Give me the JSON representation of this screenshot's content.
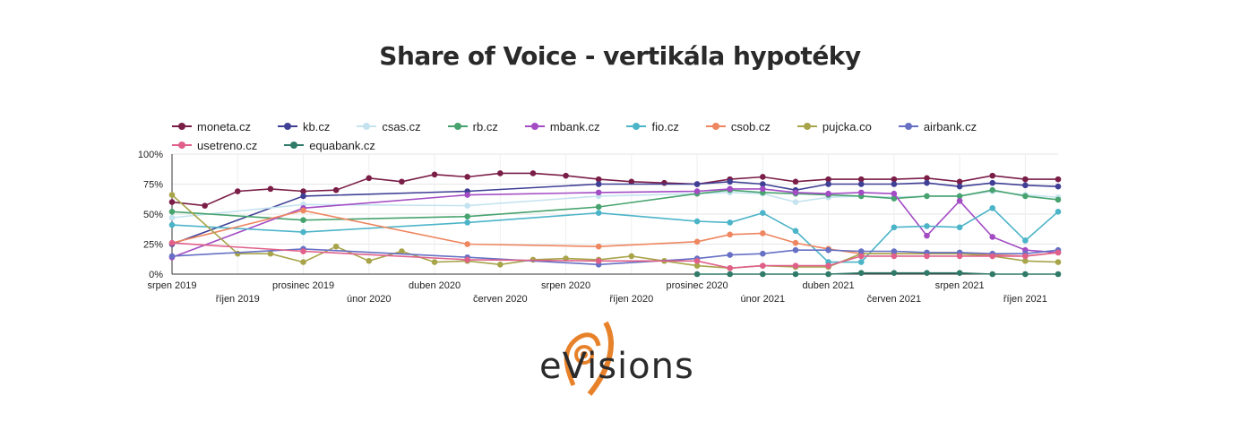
{
  "title": "Share of Voice - vertikála hypotéky",
  "logo_text": "eVisions",
  "colors": {
    "accent": "#e8822a",
    "text": "#2a2a2a",
    "grid": "#e6e6e6"
  },
  "chart_data": {
    "type": "line",
    "title": "Share of Voice - vertikála hypotéky",
    "xlabel": "",
    "ylabel": "",
    "ylim": [
      0,
      100
    ],
    "y_ticks": [
      "0%",
      "25%",
      "50%",
      "75%",
      "100%"
    ],
    "x_tick_labels": [
      {
        "i": 0,
        "label": "srpen 2019",
        "row": 0
      },
      {
        "i": 2,
        "label": "říjen 2019",
        "row": 1
      },
      {
        "i": 4,
        "label": "prosinec 2019",
        "row": 0
      },
      {
        "i": 6,
        "label": "únor 2020",
        "row": 1
      },
      {
        "i": 8,
        "label": "duben 2020",
        "row": 0
      },
      {
        "i": 10,
        "label": "červen 2020",
        "row": 1
      },
      {
        "i": 12,
        "label": "srpen 2020",
        "row": 0
      },
      {
        "i": 14,
        "label": "říjen 2020",
        "row": 1
      },
      {
        "i": 16,
        "label": "prosinec 2020",
        "row": 0
      },
      {
        "i": 18,
        "label": "únor 2021",
        "row": 1
      },
      {
        "i": 20,
        "label": "duben 2021",
        "row": 0
      },
      {
        "i": 22,
        "label": "červen 2021",
        "row": 1
      },
      {
        "i": 24,
        "label": "srpen 2021",
        "row": 0
      },
      {
        "i": 26,
        "label": "říjen 2021",
        "row": 1
      }
    ],
    "legend_position": "top",
    "series": [
      {
        "name": "moneta.cz",
        "color": "#7a1d47",
        "points": [
          [
            0,
            60
          ],
          [
            1,
            57
          ],
          [
            2,
            69
          ],
          [
            3,
            71
          ],
          [
            4,
            69
          ],
          [
            5,
            70
          ],
          [
            6,
            80
          ],
          [
            7,
            77
          ],
          [
            8,
            83
          ],
          [
            9,
            81
          ],
          [
            10,
            84
          ],
          [
            11,
            84
          ],
          [
            12,
            82
          ],
          [
            13,
            79
          ],
          [
            14,
            77
          ],
          [
            15,
            76
          ],
          [
            16,
            75
          ],
          [
            17,
            79
          ],
          [
            18,
            81
          ],
          [
            19,
            77
          ],
          [
            20,
            79
          ],
          [
            21,
            79
          ],
          [
            22,
            79
          ],
          [
            23,
            80
          ],
          [
            24,
            77
          ],
          [
            25,
            82
          ],
          [
            26,
            79
          ],
          [
            27,
            79
          ]
        ]
      },
      {
        "name": "kb.cz",
        "color": "#3f3f96",
        "points": [
          [
            0,
            25
          ],
          [
            4,
            65
          ],
          [
            9,
            69
          ],
          [
            13,
            75
          ],
          [
            16,
            75
          ],
          [
            17,
            77
          ],
          [
            18,
            75
          ],
          [
            19,
            70
          ],
          [
            20,
            75
          ],
          [
            21,
            75
          ],
          [
            22,
            75
          ],
          [
            23,
            76
          ],
          [
            24,
            73
          ],
          [
            25,
            76
          ],
          [
            26,
            74
          ],
          [
            27,
            73
          ]
        ]
      },
      {
        "name": "csas.cz",
        "color": "#c4e3ef",
        "points": [
          [
            0,
            47
          ],
          [
            4,
            58
          ],
          [
            9,
            57
          ],
          [
            13,
            65
          ],
          [
            16,
            67
          ],
          [
            17,
            68
          ],
          [
            18,
            67
          ],
          [
            19,
            60
          ],
          [
            20,
            64
          ],
          [
            21,
            65
          ],
          [
            22,
            64
          ],
          [
            23,
            65
          ],
          [
            24,
            65
          ],
          [
            25,
            69
          ],
          [
            26,
            66
          ],
          [
            27,
            64
          ]
        ]
      },
      {
        "name": "rb.cz",
        "color": "#47a36e",
        "points": [
          [
            0,
            52
          ],
          [
            4,
            45
          ],
          [
            9,
            48
          ],
          [
            13,
            56
          ],
          [
            16,
            67
          ],
          [
            17,
            70
          ],
          [
            18,
            68
          ],
          [
            19,
            67
          ],
          [
            20,
            66
          ],
          [
            21,
            65
          ],
          [
            22,
            63
          ],
          [
            23,
            65
          ],
          [
            24,
            65
          ],
          [
            25,
            70
          ],
          [
            26,
            65
          ],
          [
            27,
            62
          ]
        ]
      },
      {
        "name": "mbank.cz",
        "color": "#a34cc4",
        "points": [
          [
            0,
            14
          ],
          [
            4,
            55
          ],
          [
            9,
            66
          ],
          [
            13,
            68
          ],
          [
            16,
            69
          ],
          [
            17,
            71
          ],
          [
            18,
            71
          ],
          [
            19,
            68
          ],
          [
            20,
            67
          ],
          [
            21,
            68
          ],
          [
            22,
            67
          ],
          [
            23,
            32
          ],
          [
            24,
            61
          ],
          [
            25,
            31
          ],
          [
            26,
            20
          ],
          [
            27,
            18
          ]
        ]
      },
      {
        "name": "fio.cz",
        "color": "#4cb4c8",
        "points": [
          [
            0,
            41
          ],
          [
            4,
            35
          ],
          [
            9,
            43
          ],
          [
            13,
            51
          ],
          [
            16,
            44
          ],
          [
            17,
            43
          ],
          [
            18,
            51
          ],
          [
            19,
            36
          ],
          [
            20,
            10
          ],
          [
            21,
            10
          ],
          [
            22,
            39
          ],
          [
            23,
            40
          ],
          [
            24,
            39
          ],
          [
            25,
            55
          ],
          [
            26,
            28
          ],
          [
            27,
            52
          ]
        ]
      },
      {
        "name": "csob.cz",
        "color": "#ee8660",
        "points": [
          [
            0,
            26
          ],
          [
            4,
            53
          ],
          [
            9,
            25
          ],
          [
            13,
            23
          ],
          [
            16,
            27
          ],
          [
            17,
            33
          ],
          [
            18,
            34
          ],
          [
            19,
            26
          ],
          [
            20,
            21
          ],
          [
            21,
            17
          ],
          [
            22,
            17
          ],
          [
            23,
            17
          ],
          [
            24,
            17
          ],
          [
            25,
            16
          ],
          [
            26,
            15
          ],
          [
            27,
            18
          ]
        ]
      },
      {
        "name": "pujcka.co",
        "color": "#a8a44a",
        "points": [
          [
            0,
            66
          ],
          [
            2,
            17
          ],
          [
            3,
            17
          ],
          [
            4,
            10
          ],
          [
            5,
            23
          ],
          [
            6,
            11
          ],
          [
            7,
            19
          ],
          [
            8,
            10
          ],
          [
            9,
            11
          ],
          [
            10,
            8
          ],
          [
            11,
            12
          ],
          [
            12,
            13
          ],
          [
            13,
            12
          ],
          [
            14,
            15
          ],
          [
            15,
            11
          ],
          [
            16,
            7
          ],
          [
            17,
            5
          ],
          [
            18,
            7
          ],
          [
            19,
            6
          ],
          [
            20,
            6
          ],
          [
            21,
            17
          ],
          [
            22,
            17
          ],
          [
            23,
            17
          ],
          [
            24,
            17
          ],
          [
            25,
            15
          ],
          [
            26,
            11
          ],
          [
            27,
            10
          ]
        ]
      },
      {
        "name": "airbank.cz",
        "color": "#6670c4",
        "points": [
          [
            0,
            15
          ],
          [
            4,
            21
          ],
          [
            9,
            14
          ],
          [
            13,
            8
          ],
          [
            16,
            13
          ],
          [
            17,
            16
          ],
          [
            18,
            17
          ],
          [
            19,
            20
          ],
          [
            20,
            20
          ],
          [
            21,
            19
          ],
          [
            22,
            19
          ],
          [
            23,
            18
          ],
          [
            24,
            18
          ],
          [
            25,
            17
          ],
          [
            26,
            17
          ],
          [
            27,
            20
          ]
        ]
      },
      {
        "name": "usetreno.cz",
        "color": "#e0608a",
        "points": [
          [
            0,
            26
          ],
          [
            4,
            19
          ],
          [
            9,
            12
          ],
          [
            13,
            11
          ],
          [
            16,
            11
          ],
          [
            17,
            5
          ],
          [
            18,
            7
          ],
          [
            19,
            7
          ],
          [
            20,
            7
          ],
          [
            21,
            15
          ],
          [
            22,
            15
          ],
          [
            23,
            15
          ],
          [
            24,
            15
          ],
          [
            25,
            15
          ],
          [
            26,
            15
          ],
          [
            27,
            18
          ]
        ]
      },
      {
        "name": "equabank.cz",
        "color": "#2f7a68",
        "points": [
          [
            16,
            0
          ],
          [
            17,
            0
          ],
          [
            18,
            0
          ],
          [
            19,
            0
          ],
          [
            20,
            0
          ],
          [
            21,
            1
          ],
          [
            22,
            1
          ],
          [
            23,
            1
          ],
          [
            24,
            1
          ],
          [
            25,
            0
          ],
          [
            26,
            0
          ],
          [
            27,
            0
          ]
        ]
      }
    ]
  }
}
